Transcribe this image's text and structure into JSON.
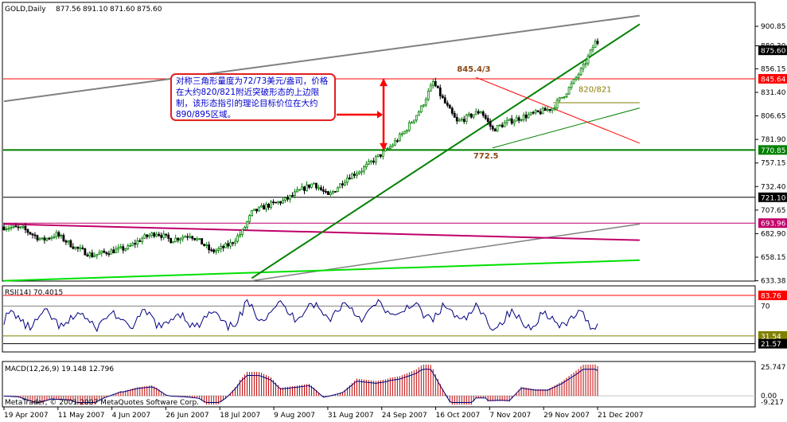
{
  "chart_data": [
    {
      "type": "candlestick",
      "title": "GOLD,Daily",
      "ohlc_readout": [
        "877.56",
        "891.10",
        "871.60",
        "875.60"
      ],
      "x_ticks": [
        "19 Apr 2007",
        "11 May 2007",
        "4 Jun 2007",
        "26 Jun 2007",
        "18 Jul 2007",
        "9 Aug 2007",
        "31 Aug 2007",
        "24 Sep 2007",
        "16 Oct 2007",
        "7 Nov 2007",
        "29 Nov 2007",
        "21 Dec 2007"
      ],
      "y_ticks": [
        900.85,
        880.3,
        856.15,
        831.4,
        806.65,
        781.9,
        757.15,
        732.4,
        707.65,
        682.9,
        658.15,
        633.38
      ],
      "ylim": [
        633.38,
        912
      ],
      "price_labels": [
        {
          "value": 875.6,
          "text": "875.60",
          "bg": "#000000",
          "fg": "#ffffff"
        },
        {
          "value": 845.64,
          "text": "845.64",
          "bg": "#ff0000",
          "fg": "#ffffff"
        },
        {
          "value": 770.85,
          "text": "770.85",
          "bg": "#008000",
          "fg": "#ffffff"
        },
        {
          "value": 721.1,
          "text": "721.10",
          "bg": "#000000",
          "fg": "#ffffff"
        },
        {
          "value": 693.96,
          "text": "693.96",
          "bg": "#c0006a",
          "fg": "#ffffff"
        }
      ],
      "annotations": [
        {
          "text": "845.4/3",
          "x_date": "2007-11-07",
          "y": 853
        },
        {
          "text": "772.5",
          "x_date": "2007-11-14",
          "y": 762
        },
        {
          "text": "820/821",
          "x_date": "2007-12-29",
          "y": 832
        }
      ],
      "note": "对称三角形量度为72/73美元/盎司，价格在大约820/821附近突破形态的上边限制，该形态指引的理论目标价位在大约890/895区域。",
      "colors": {
        "bull": "#008000",
        "bear": "#000000",
        "resistance": "#ff0000",
        "support": "#008000",
        "channel": "#808080",
        "magenta": "#c0006a",
        "lime": "#00e000"
      }
    },
    {
      "type": "line",
      "title": "RSI(14) 70.4015",
      "levels": [
        83.76,
        70,
        31.54,
        21.57
      ],
      "level_labels": [
        {
          "value": 83.76,
          "text": "83.76",
          "bg": "#ff0000",
          "fg": "#ffffff"
        },
        {
          "value": 31.54,
          "text": "31.54",
          "bg": "#808000",
          "fg": "#ffffff"
        },
        {
          "value": 21.57,
          "text": "21.57",
          "bg": "#000000",
          "fg": "#ffffff"
        }
      ],
      "y_ticks": [
        70
      ],
      "ylim": [
        12,
        95
      ],
      "color": "#000080"
    },
    {
      "type": "bar+line",
      "title": "MACD(12,26,9) 19.148 12.796",
      "y_ticks": [
        25.747,
        0.0
      ],
      "ylim": [
        -9.2,
        30
      ],
      "colors": {
        "histogram": "#c00000",
        "signal": "#000080"
      }
    }
  ],
  "footer": "MetaTrader, © 2001-2007 MetaQuotes Software Corp."
}
